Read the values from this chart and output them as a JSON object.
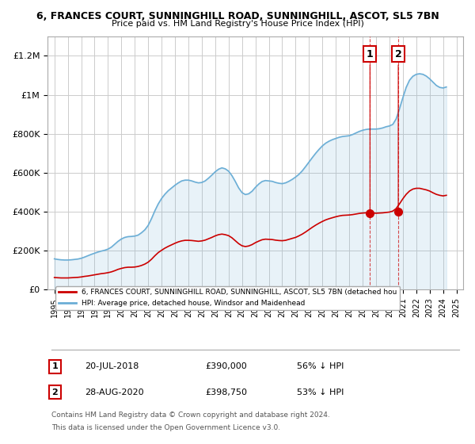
{
  "title_line1": "6, FRANCES COURT, SUNNINGHILL ROAD, SUNNINGHILL, ASCOT, SL5 7BN",
  "title_line2": "Price paid vs. HM Land Registry's House Price Index (HPI)",
  "ylabel_ticks": [
    "£0",
    "£200K",
    "£400K",
    "£600K",
    "£800K",
    "£1M",
    "£1.2M"
  ],
  "ytick_values": [
    0,
    200000,
    400000,
    600000,
    800000,
    1000000,
    1200000
  ],
  "ylim": [
    0,
    1300000
  ],
  "hpi_color": "#6baed6",
  "price_color": "#cc0000",
  "background_color": "#ffffff",
  "grid_color": "#cccccc",
  "legend_label1": "6, FRANCES COURT, SUNNINGHILL ROAD, SUNNINGHILL, ASCOT, SL5 7BN (detached hou",
  "legend_label2": "HPI: Average price, detached house, Windsor and Maidenhead",
  "transaction1_date": 2018.55,
  "transaction1_price": 390000,
  "transaction2_date": 2020.66,
  "transaction2_price": 398750,
  "footer_line1": "Contains HM Land Registry data © Crown copyright and database right 2024.",
  "footer_line2": "This data is licensed under the Open Government Licence v3.0.",
  "hpi_data": {
    "years": [
      1995.0,
      1995.25,
      1995.5,
      1995.75,
      1996.0,
      1996.25,
      1996.5,
      1996.75,
      1997.0,
      1997.25,
      1997.5,
      1997.75,
      1998.0,
      1998.25,
      1998.5,
      1998.75,
      1999.0,
      1999.25,
      1999.5,
      1999.75,
      2000.0,
      2000.25,
      2000.5,
      2000.75,
      2001.0,
      2001.25,
      2001.5,
      2001.75,
      2002.0,
      2002.25,
      2002.5,
      2002.75,
      2003.0,
      2003.25,
      2003.5,
      2003.75,
      2004.0,
      2004.25,
      2004.5,
      2004.75,
      2005.0,
      2005.25,
      2005.5,
      2005.75,
      2006.0,
      2006.25,
      2006.5,
      2006.75,
      2007.0,
      2007.25,
      2007.5,
      2007.75,
      2008.0,
      2008.25,
      2008.5,
      2008.75,
      2009.0,
      2009.25,
      2009.5,
      2009.75,
      2010.0,
      2010.25,
      2010.5,
      2010.75,
      2011.0,
      2011.25,
      2011.5,
      2011.75,
      2012.0,
      2012.25,
      2012.5,
      2012.75,
      2013.0,
      2013.25,
      2013.5,
      2013.75,
      2014.0,
      2014.25,
      2014.5,
      2014.75,
      2015.0,
      2015.25,
      2015.5,
      2015.75,
      2016.0,
      2016.25,
      2016.5,
      2016.75,
      2017.0,
      2017.25,
      2017.5,
      2017.75,
      2018.0,
      2018.25,
      2018.5,
      2018.75,
      2019.0,
      2019.25,
      2019.5,
      2019.75,
      2020.0,
      2020.25,
      2020.5,
      2020.75,
      2021.0,
      2021.25,
      2021.5,
      2021.75,
      2022.0,
      2022.25,
      2022.5,
      2022.75,
      2023.0,
      2023.25,
      2023.5,
      2023.75,
      2024.0,
      2024.25
    ],
    "values": [
      158000,
      155000,
      153000,
      152000,
      152000,
      153000,
      155000,
      157000,
      161000,
      167000,
      174000,
      181000,
      187000,
      193000,
      198000,
      202000,
      208000,
      218000,
      233000,
      248000,
      260000,
      268000,
      272000,
      273000,
      275000,
      280000,
      292000,
      307000,
      330000,
      365000,
      405000,
      440000,
      468000,
      490000,
      508000,
      522000,
      536000,
      548000,
      558000,
      562000,
      562000,
      558000,
      552000,
      548000,
      550000,
      558000,
      572000,
      588000,
      605000,
      618000,
      625000,
      620000,
      608000,
      585000,
      555000,
      522000,
      498000,
      488000,
      492000,
      505000,
      525000,
      542000,
      555000,
      560000,
      558000,
      556000,
      550000,
      546000,
      544000,
      548000,
      556000,
      566000,
      578000,
      592000,
      610000,
      632000,
      655000,
      678000,
      700000,
      720000,
      738000,
      752000,
      762000,
      770000,
      776000,
      782000,
      786000,
      788000,
      790000,
      796000,
      804000,
      812000,
      818000,
      822000,
      824000,
      824000,
      824000,
      826000,
      830000,
      836000,
      840000,
      848000,
      876000,
      928000,
      985000,
      1038000,
      1075000,
      1095000,
      1105000,
      1108000,
      1105000,
      1096000,
      1082000,
      1065000,
      1048000,
      1038000,
      1035000,
      1040000
    ]
  },
  "price_data": {
    "years": [
      1995.0,
      1995.25,
      1995.5,
      1995.75,
      1996.0,
      1996.25,
      1996.5,
      1996.75,
      1997.0,
      1997.25,
      1997.5,
      1997.75,
      1998.0,
      1998.25,
      1998.5,
      1998.75,
      1999.0,
      1999.25,
      1999.5,
      1999.75,
      2000.0,
      2000.25,
      2000.5,
      2000.75,
      2001.0,
      2001.25,
      2001.5,
      2001.75,
      2002.0,
      2002.25,
      2002.5,
      2002.75,
      2003.0,
      2003.25,
      2003.5,
      2003.75,
      2004.0,
      2004.25,
      2004.5,
      2004.75,
      2005.0,
      2005.25,
      2005.5,
      2005.75,
      2006.0,
      2006.25,
      2006.5,
      2006.75,
      2007.0,
      2007.25,
      2007.5,
      2007.75,
      2008.0,
      2008.25,
      2008.5,
      2008.75,
      2009.0,
      2009.25,
      2009.5,
      2009.75,
      2010.0,
      2010.25,
      2010.5,
      2010.75,
      2011.0,
      2011.25,
      2011.5,
      2011.75,
      2012.0,
      2012.25,
      2012.5,
      2012.75,
      2013.0,
      2013.25,
      2013.5,
      2013.75,
      2014.0,
      2014.25,
      2014.5,
      2014.75,
      2015.0,
      2015.25,
      2015.5,
      2015.75,
      2016.0,
      2016.25,
      2016.5,
      2016.75,
      2017.0,
      2017.25,
      2017.5,
      2017.75,
      2018.0,
      2018.25,
      2018.5,
      2018.75,
      2019.0,
      2019.25,
      2019.5,
      2019.75,
      2020.0,
      2020.25,
      2020.5,
      2020.75,
      2021.0,
      2021.25,
      2021.5,
      2021.75,
      2022.0,
      2022.25,
      2022.5,
      2022.75,
      2023.0,
      2023.25,
      2023.5,
      2023.75,
      2024.0,
      2024.25
    ],
    "values": [
      62000,
      61000,
      60000,
      60000,
      60000,
      61000,
      62000,
      63000,
      65000,
      68000,
      70000,
      73000,
      76000,
      79000,
      82000,
      84000,
      87000,
      91000,
      97000,
      104000,
      109000,
      113000,
      115000,
      115000,
      116000,
      119000,
      124000,
      131000,
      141000,
      156000,
      174000,
      190000,
      202000,
      213000,
      222000,
      230000,
      238000,
      245000,
      250000,
      253000,
      253000,
      252000,
      250000,
      248000,
      250000,
      254000,
      261000,
      268000,
      276000,
      282000,
      285000,
      282000,
      277000,
      266000,
      251000,
      236000,
      225000,
      221000,
      224000,
      231000,
      241000,
      249000,
      256000,
      259000,
      258000,
      257000,
      254000,
      252000,
      251000,
      253000,
      258000,
      263000,
      268000,
      276000,
      285000,
      296000,
      308000,
      320000,
      331000,
      341000,
      350000,
      358000,
      364000,
      369000,
      374000,
      378000,
      381000,
      382000,
      383000,
      385000,
      388000,
      391000,
      393000,
      394000,
      394000,
      393000,
      392000,
      393000,
      394000,
      396000,
      398000,
      403000,
      416000,
      440000,
      466000,
      489000,
      506000,
      516000,
      520000,
      520000,
      516000,
      512000,
      506000,
      497000,
      489000,
      484000,
      481000,
      484000
    ]
  }
}
